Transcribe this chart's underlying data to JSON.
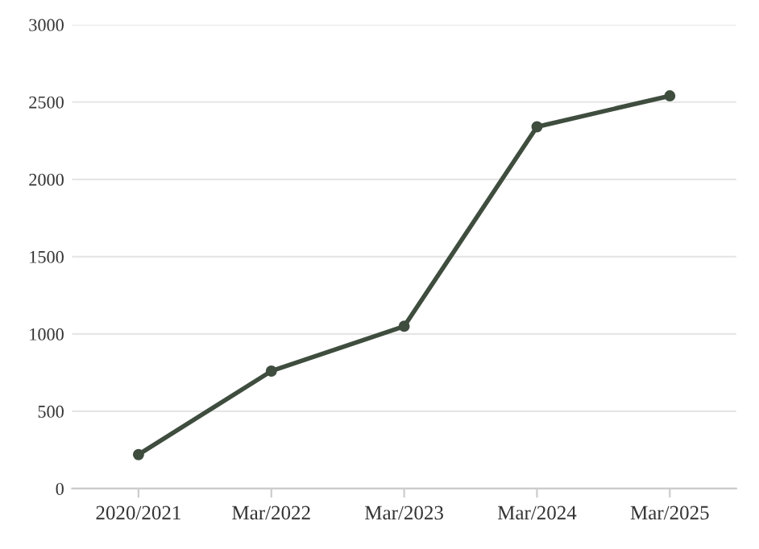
{
  "chart_data": {
    "type": "line",
    "categories": [
      "2020/2021",
      "Mar/2022",
      "Mar/2023",
      "Mar/2024",
      "Mar/2025"
    ],
    "series": [
      {
        "color": "#3f4d3f",
        "values": [
          220,
          760,
          1050,
          2340,
          2540
        ]
      }
    ],
    "ylim": [
      0,
      3000
    ],
    "yticks": [
      0,
      500,
      1000,
      1500,
      2000,
      2500,
      3000
    ],
    "grid": "y",
    "marker": "circle",
    "line_style": "solid"
  }
}
